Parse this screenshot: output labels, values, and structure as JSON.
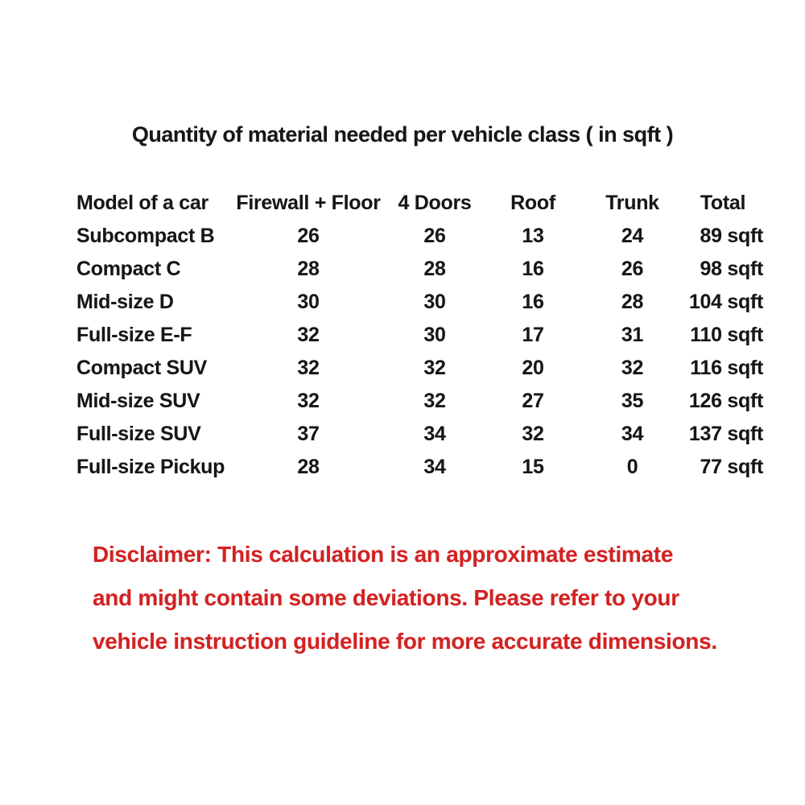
{
  "title": "Quantity of material needed per vehicle class ( in sqft )",
  "table": {
    "headers": {
      "model": "Model of a car",
      "firewall_floor": "Firewall + Floor",
      "doors": "4 Doors",
      "roof": "Roof",
      "trunk": "Trunk",
      "total": "Total"
    },
    "rows": [
      {
        "model": "Subcompact B",
        "firewall_floor": "26",
        "doors": "26",
        "roof": "13",
        "trunk": "24",
        "total": "89 sqft"
      },
      {
        "model": "Compact C",
        "firewall_floor": "28",
        "doors": "28",
        "roof": "16",
        "trunk": "26",
        "total": "98 sqft"
      },
      {
        "model": "Mid-size D",
        "firewall_floor": "30",
        "doors": "30",
        "roof": "16",
        "trunk": "28",
        "total": "104 sqft"
      },
      {
        "model": "Full-size E-F",
        "firewall_floor": "32",
        "doors": "30",
        "roof": "17",
        "trunk": "31",
        "total": "110 sqft"
      },
      {
        "model": "Compact SUV",
        "firewall_floor": "32",
        "doors": "32",
        "roof": "20",
        "trunk": "32",
        "total": "116 sqft"
      },
      {
        "model": "Mid-size SUV",
        "firewall_floor": "32",
        "doors": "32",
        "roof": "27",
        "trunk": "35",
        "total": "126 sqft"
      },
      {
        "model": "Full-size SUV",
        "firewall_floor": "37",
        "doors": "34",
        "roof": "32",
        "trunk": "34",
        "total": "137 sqft"
      },
      {
        "model": "Full-size Pickup",
        "firewall_floor": "28",
        "doors": "34",
        "roof": "15",
        "trunk": "0",
        "total": "77 sqft"
      }
    ]
  },
  "disclaimer": {
    "lines": [
      "Disclaimer: This calculation is an approximate estimate",
      "and might contain some deviations. Please refer to your",
      "vehicle instruction guideline for more accurate dimensions."
    ]
  },
  "colors": {
    "text": "#161616",
    "disclaimer_red": "#d32222",
    "background": "#ffffff"
  }
}
